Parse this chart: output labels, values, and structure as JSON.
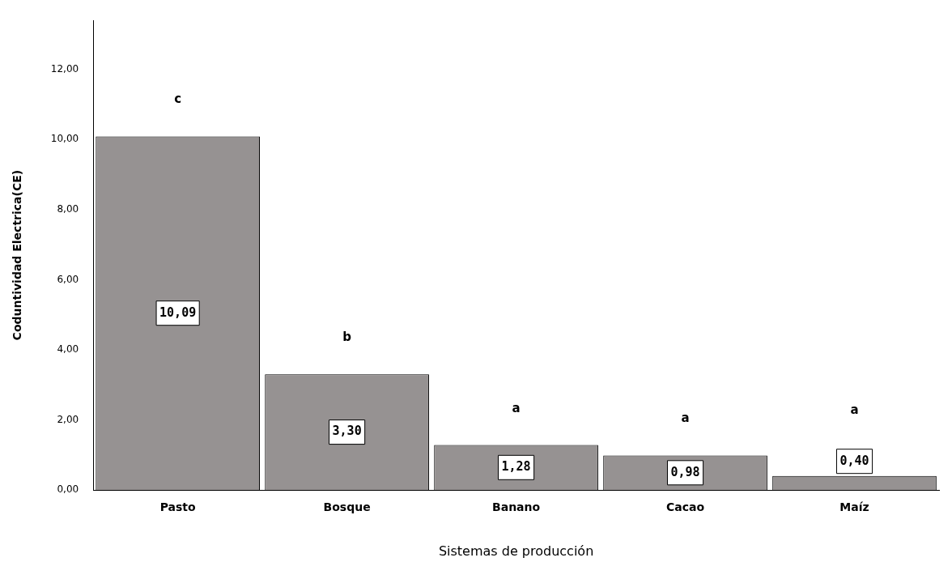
{
  "chart_data": {
    "type": "bar",
    "xlabel": "Sistemas de producción",
    "ylabel": "Coduntividad Electrica(CE)",
    "categories": [
      "Pasto",
      "Bosque",
      "Banano",
      "Cacao",
      "Maíz"
    ],
    "values": [
      10.09,
      3.3,
      1.28,
      0.98,
      0.4
    ],
    "value_labels": [
      "10,09",
      "3,30",
      "1,28",
      "0,98",
      "0,40"
    ],
    "color": "#969292",
    "ylim": [
      0,
      13.4
    ],
    "yticks": [
      {
        "value": 0,
        "label": "0,00"
      },
      {
        "value": 2,
        "label": "2,00"
      },
      {
        "value": 4,
        "label": "4,00"
      },
      {
        "value": 6,
        "label": "6,00"
      },
      {
        "value": 8,
        "label": "8,00"
      },
      {
        "value": 10,
        "label": "10,00"
      },
      {
        "value": 12,
        "label": "12,00"
      }
    ],
    "grid": false,
    "legend": false,
    "annotations": [
      "c",
      "b",
      "a",
      "a",
      "a"
    ]
  }
}
